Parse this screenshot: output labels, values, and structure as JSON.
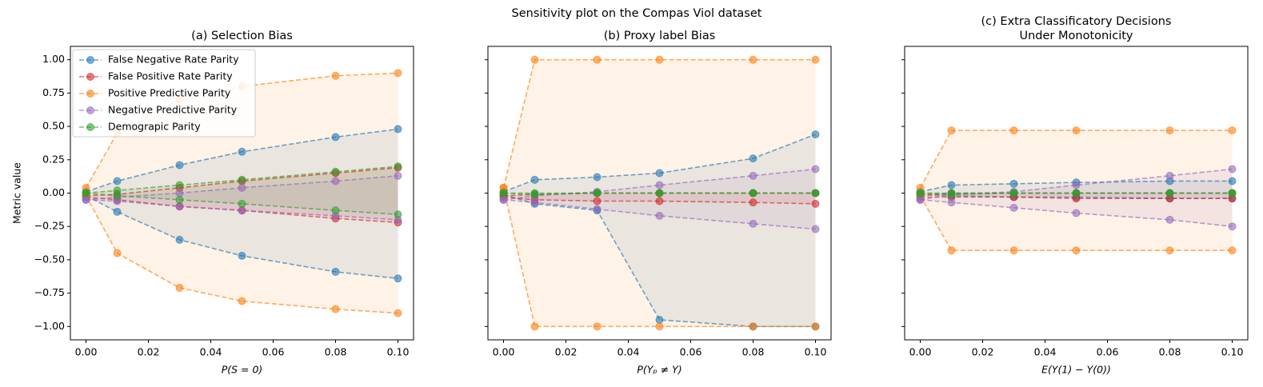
{
  "title": "Sensitivity plot on the Compas Viol dataset",
  "chart_data": [
    {
      "type": "line",
      "title": [
        "(a) Selection Bias"
      ],
      "xlabel": "P(S = 0)",
      "ylabel": "Metric value",
      "legend": "upper left",
      "x": [
        0,
        0.01,
        0.03,
        0.05,
        0.08,
        0.1
      ],
      "xlim": [
        -0.005,
        0.105
      ],
      "xticks": [
        {
          "value": 0,
          "label": "0.00"
        },
        {
          "value": 0.02,
          "label": "0.02"
        },
        {
          "value": 0.04,
          "label": "0.04"
        },
        {
          "value": 0.06,
          "label": "0.06"
        },
        {
          "value": 0.08,
          "label": "0.08"
        },
        {
          "value": 0.1,
          "label": "0.10"
        }
      ],
      "ylim": [
        -1.1,
        1.1
      ],
      "yticks": [
        {
          "value": 1,
          "label": "1.00"
        },
        {
          "value": 0.75,
          "label": "0.75"
        },
        {
          "value": 0.5,
          "label": "0.50"
        },
        {
          "value": 0.25,
          "label": "0.25"
        },
        {
          "value": 0,
          "label": "0.00"
        },
        {
          "value": -0.25,
          "label": "−0.25"
        },
        {
          "value": -0.5,
          "label": "−0.50"
        },
        {
          "value": -0.75,
          "label": "−0.75"
        },
        {
          "value": -1,
          "label": "−1.00"
        }
      ],
      "series": [
        {
          "name": "False Negative Rate Parity",
          "color": "#1f77b4",
          "values": [
            0.01,
            0.09,
            0.21,
            0.31,
            0.42,
            0.48
          ],
          "lower": [
            -0.02,
            -0.14,
            -0.35,
            -0.47,
            -0.59,
            -0.64
          ]
        },
        {
          "name": "False Positive Rate Parity",
          "color": "#d62728",
          "values": [
            -0.02,
            -0.01,
            0.04,
            0.09,
            0.15,
            0.19
          ],
          "lower": [
            -0.03,
            -0.05,
            -0.1,
            -0.13,
            -0.19,
            -0.22
          ]
        },
        {
          "name": "Positive Predictive Parity",
          "color": "#ff7f0e",
          "values": [
            0.04,
            0.45,
            0.7,
            0.8,
            0.88,
            0.9
          ],
          "lower": [
            -0.02,
            -0.45,
            -0.71,
            -0.81,
            -0.87,
            -0.9
          ]
        },
        {
          "name": "Negative Predictive Parity",
          "color": "#9467bd",
          "values": [
            -0.05,
            -0.03,
            0.0,
            0.04,
            0.09,
            0.13
          ],
          "lower": [
            -0.05,
            -0.06,
            -0.1,
            -0.13,
            -0.17,
            -0.2
          ]
        },
        {
          "name": "Demograpic Parity",
          "color": "#2ca02c",
          "values": [
            0.0,
            0.02,
            0.06,
            0.1,
            0.16,
            0.2
          ],
          "lower": [
            0.0,
            -0.02,
            -0.05,
            -0.08,
            -0.13,
            -0.16
          ]
        }
      ]
    },
    {
      "type": "line",
      "title": [
        "(b) Proxy label Bias"
      ],
      "xlabel": "P(Yₚ ≠ Y)",
      "x": [
        0,
        0.01,
        0.03,
        0.05,
        0.08,
        0.1
      ],
      "xlim": [
        -0.005,
        0.105
      ],
      "xticks": [
        {
          "value": 0,
          "label": "0.00"
        },
        {
          "value": 0.02,
          "label": "0.02"
        },
        {
          "value": 0.04,
          "label": "0.04"
        },
        {
          "value": 0.06,
          "label": "0.06"
        },
        {
          "value": 0.08,
          "label": "0.08"
        },
        {
          "value": 0.1,
          "label": "0.10"
        }
      ],
      "series": [
        {
          "name": "False Negative Rate Parity",
          "color": "#1f77b4",
          "values": [
            0.01,
            0.1,
            0.12,
            0.15,
            0.26,
            0.44
          ],
          "lower": [
            -0.01,
            -0.08,
            -0.13,
            -0.95,
            -1.0,
            -1.0
          ]
        },
        {
          "name": "False Positive Rate Parity",
          "color": "#d62728",
          "values": [
            -0.02,
            -0.01,
            0.0,
            0.0,
            0.0,
            0.0
          ],
          "lower": [
            -0.03,
            -0.05,
            -0.06,
            -0.06,
            -0.07,
            -0.08
          ]
        },
        {
          "name": "Positive Predictive Parity",
          "color": "#ff7f0e",
          "values": [
            0.04,
            1.0,
            1.0,
            1.0,
            1.0,
            1.0
          ],
          "lower": [
            0.04,
            -1.0,
            -1.0,
            -1.0,
            -1.0,
            -1.0
          ]
        },
        {
          "name": "Negative Predictive Parity",
          "color": "#9467bd",
          "values": [
            -0.05,
            -0.02,
            0.01,
            0.06,
            0.13,
            0.18
          ],
          "lower": [
            -0.05,
            -0.07,
            -0.12,
            -0.17,
            -0.23,
            -0.27
          ]
        },
        {
          "name": "Demograpic Parity",
          "color": "#2ca02c",
          "values": [
            0.0,
            0.0,
            0.0,
            0.0,
            0.0,
            0.0
          ],
          "lower": [
            0.0,
            -0.01,
            0.0,
            0.0,
            0.0,
            0.0
          ]
        }
      ]
    },
    {
      "type": "line",
      "title": [
        "(c) Extra Classificatory Decisions",
        "Under Monotonicity"
      ],
      "xlabel": "E(Y(1) − Y(0))",
      "x": [
        0,
        0.01,
        0.03,
        0.05,
        0.08,
        0.1
      ],
      "xlim": [
        -0.005,
        0.105
      ],
      "xticks": [
        {
          "value": 0,
          "label": "0.00"
        },
        {
          "value": 0.02,
          "label": "0.02"
        },
        {
          "value": 0.04,
          "label": "0.04"
        },
        {
          "value": 0.06,
          "label": "0.06"
        },
        {
          "value": 0.08,
          "label": "0.08"
        },
        {
          "value": 0.1,
          "label": "0.10"
        }
      ],
      "series": [
        {
          "name": "False Negative Rate Parity",
          "color": "#1f77b4",
          "values": [
            0.01,
            0.06,
            0.07,
            0.08,
            0.09,
            0.09
          ],
          "lower": [
            -0.01,
            -0.02,
            -0.03,
            -0.03,
            -0.04,
            -0.04
          ]
        },
        {
          "name": "False Positive Rate Parity",
          "color": "#d62728",
          "values": [
            -0.02,
            0.0,
            0.0,
            0.0,
            0.0,
            0.0
          ],
          "lower": [
            -0.03,
            -0.03,
            -0.03,
            -0.04,
            -0.04,
            -0.04
          ]
        },
        {
          "name": "Positive Predictive Parity",
          "color": "#ff7f0e",
          "values": [
            0.04,
            0.47,
            0.47,
            0.47,
            0.47,
            0.47
          ],
          "lower": [
            -0.02,
            -0.43,
            -0.43,
            -0.43,
            -0.43,
            -0.43
          ]
        },
        {
          "name": "Negative Predictive Parity",
          "color": "#9467bd",
          "values": [
            -0.05,
            -0.01,
            0.01,
            0.06,
            0.13,
            0.18
          ],
          "lower": [
            -0.05,
            -0.07,
            -0.11,
            -0.15,
            -0.2,
            -0.25
          ]
        },
        {
          "name": "Demograpic Parity",
          "color": "#2ca02c",
          "values": [
            0.0,
            0.0,
            0.0,
            0.0,
            0.0,
            0.0
          ],
          "lower": [
            0.0,
            -0.01,
            0.0,
            0.0,
            0.0,
            0.0
          ]
        }
      ]
    }
  ]
}
